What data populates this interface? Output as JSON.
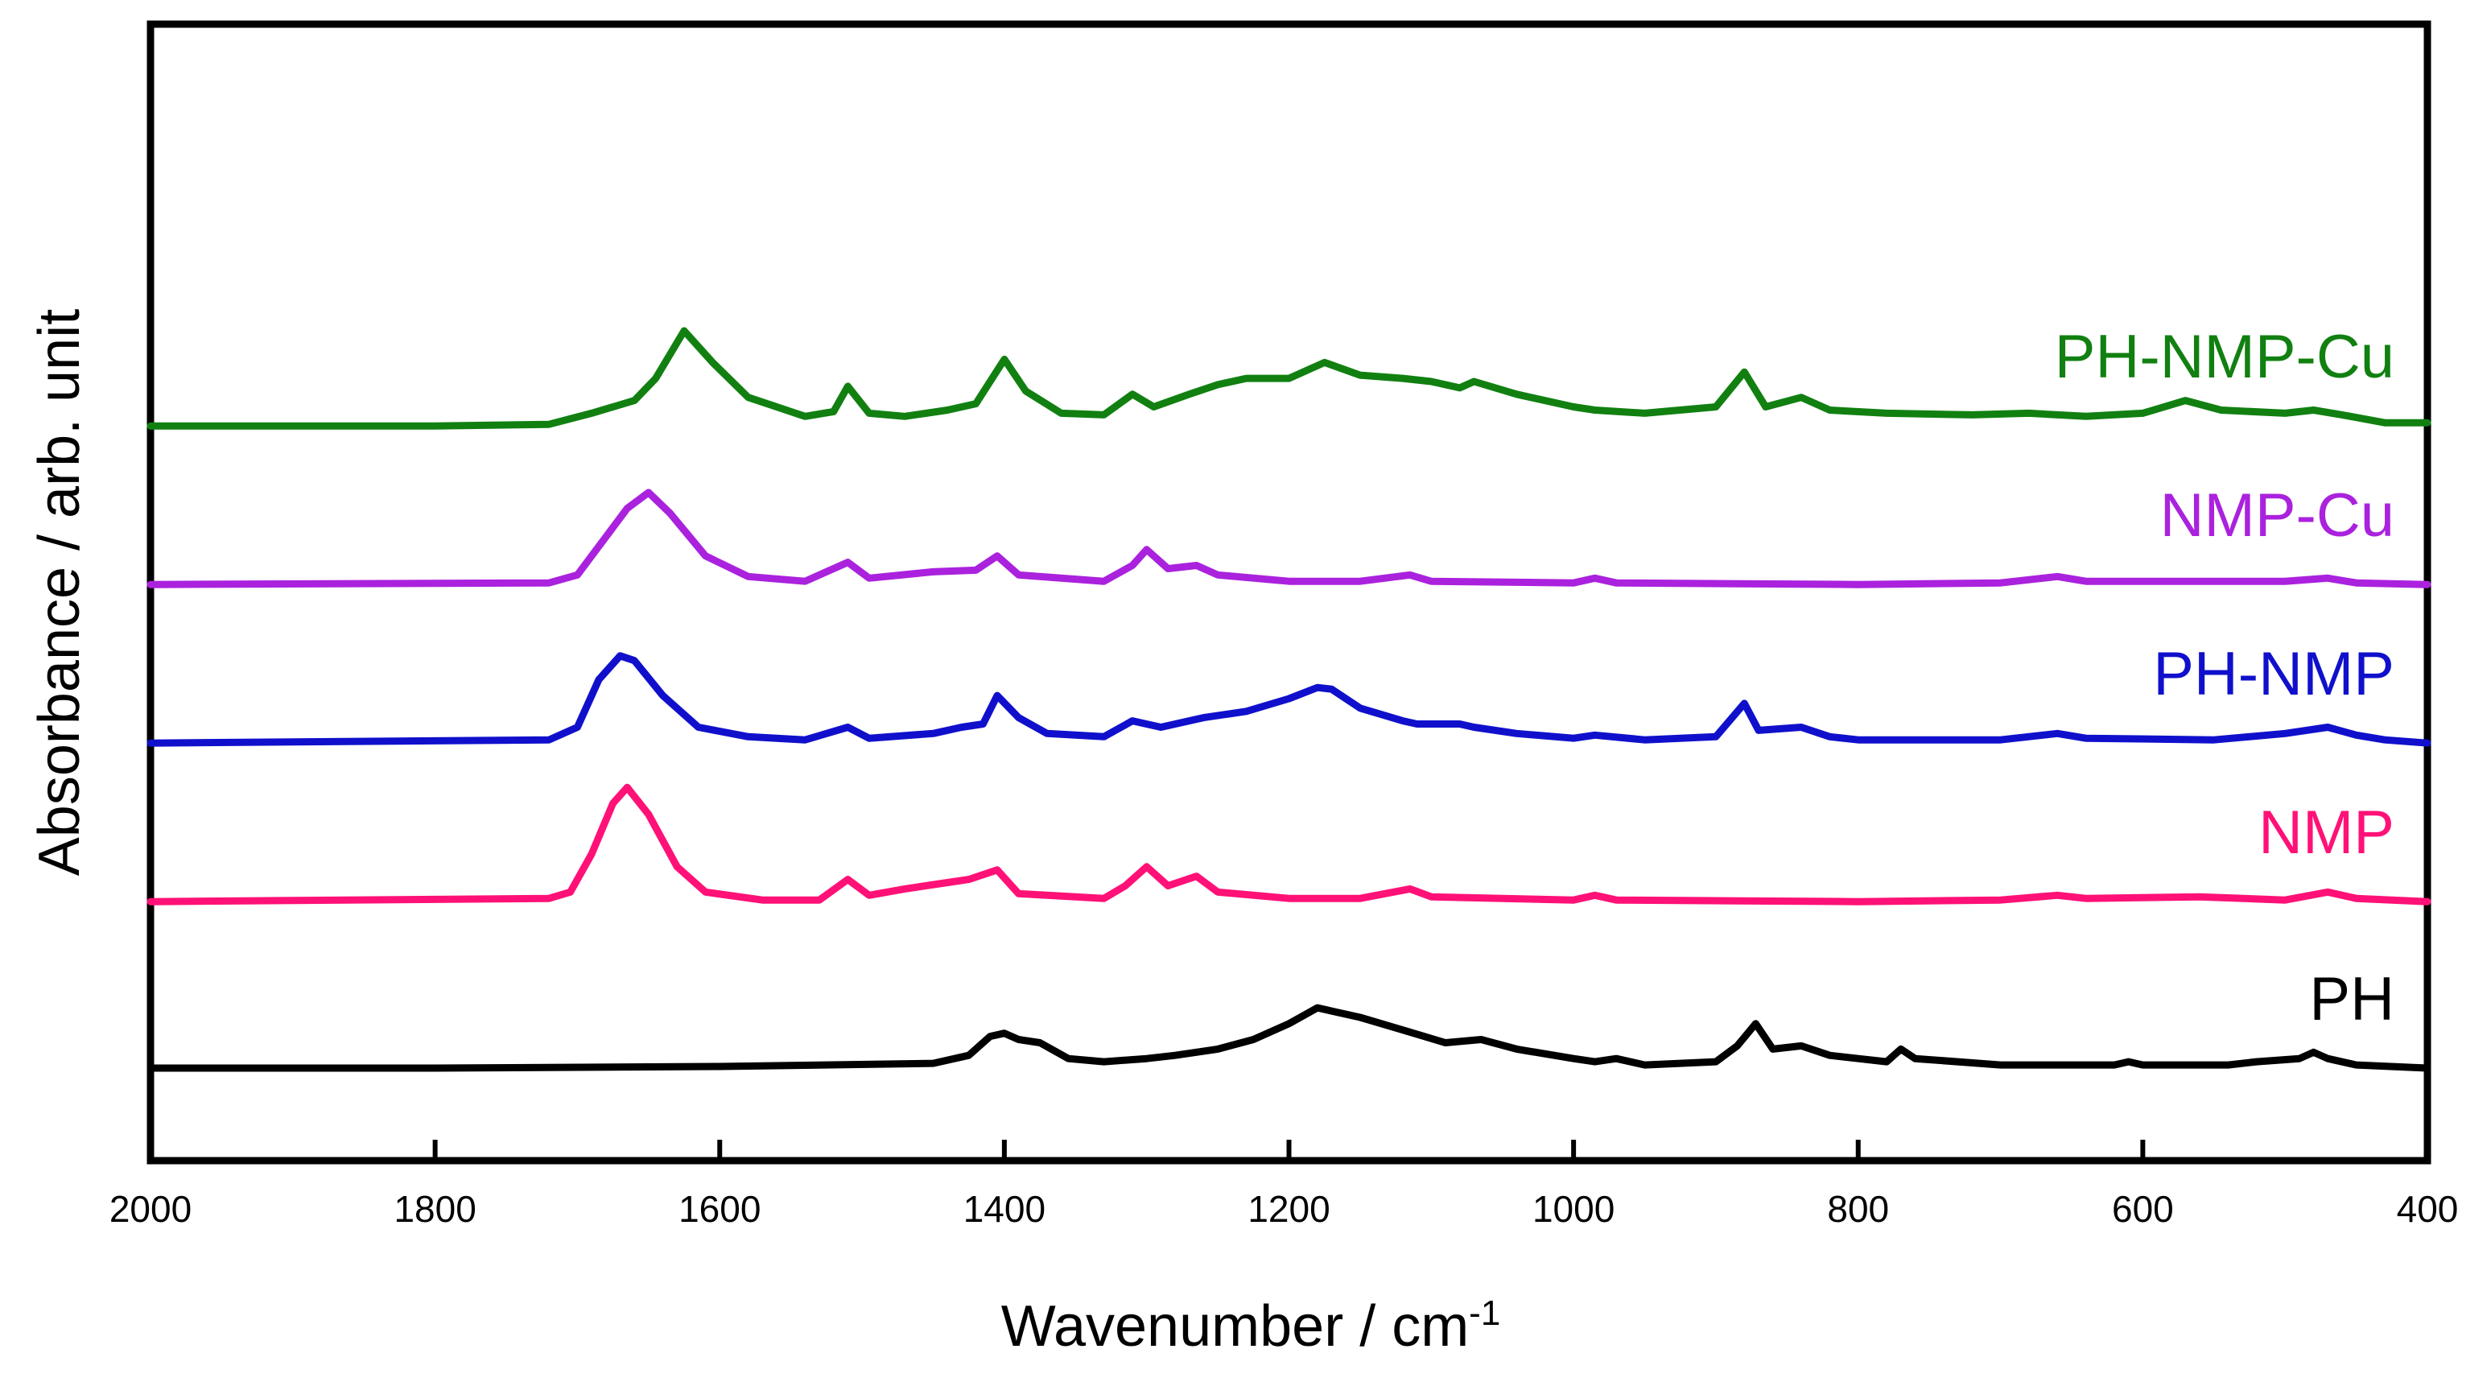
{
  "chart_data": {
    "type": "line",
    "title": "",
    "xlabel": "Wavenumber / cm",
    "xlabel_superscript": "-1",
    "ylabel": "Absorbance / arb. unit",
    "xlim": [
      2000,
      400
    ],
    "x_reversed": true,
    "xticks": [
      2000,
      1800,
      1600,
      1400,
      1200,
      1000,
      800,
      600,
      400
    ],
    "y_ticks_shown": false,
    "grid": false,
    "legend": "labels at right end of each trace",
    "series": [
      {
        "name": "PH-NMP-Cu",
        "color": "#118011",
        "offset": 4.05,
        "points": [
          [
            2000,
            0.0
          ],
          [
            1800,
            0.0
          ],
          [
            1720,
            0.01
          ],
          [
            1690,
            0.08
          ],
          [
            1660,
            0.16
          ],
          [
            1645,
            0.3
          ],
          [
            1625,
            0.6
          ],
          [
            1605,
            0.4
          ],
          [
            1580,
            0.18
          ],
          [
            1540,
            0.06
          ],
          [
            1520,
            0.09
          ],
          [
            1510,
            0.25
          ],
          [
            1495,
            0.08
          ],
          [
            1470,
            0.06
          ],
          [
            1440,
            0.1
          ],
          [
            1420,
            0.14
          ],
          [
            1400,
            0.42
          ],
          [
            1385,
            0.22
          ],
          [
            1360,
            0.08
          ],
          [
            1330,
            0.07
          ],
          [
            1310,
            0.2
          ],
          [
            1295,
            0.12
          ],
          [
            1270,
            0.2
          ],
          [
            1250,
            0.26
          ],
          [
            1230,
            0.3
          ],
          [
            1200,
            0.3
          ],
          [
            1175,
            0.4
          ],
          [
            1150,
            0.32
          ],
          [
            1120,
            0.3
          ],
          [
            1100,
            0.28
          ],
          [
            1080,
            0.24
          ],
          [
            1070,
            0.28
          ],
          [
            1040,
            0.2
          ],
          [
            1000,
            0.12
          ],
          [
            985,
            0.1
          ],
          [
            950,
            0.08
          ],
          [
            900,
            0.12
          ],
          [
            880,
            0.34
          ],
          [
            865,
            0.12
          ],
          [
            840,
            0.18
          ],
          [
            820,
            0.1
          ],
          [
            780,
            0.08
          ],
          [
            720,
            0.07
          ],
          [
            680,
            0.08
          ],
          [
            640,
            0.06
          ],
          [
            600,
            0.08
          ],
          [
            570,
            0.16
          ],
          [
            545,
            0.1
          ],
          [
            500,
            0.08
          ],
          [
            480,
            0.1
          ],
          [
            460,
            0.07
          ],
          [
            430,
            0.02
          ],
          [
            400,
            0.02
          ]
        ]
      },
      {
        "name": "NMP-Cu",
        "color": "#aa22dd",
        "offset": 3.05,
        "points": [
          [
            2000,
            0.0
          ],
          [
            1720,
            0.01
          ],
          [
            1700,
            0.06
          ],
          [
            1680,
            0.3
          ],
          [
            1665,
            0.48
          ],
          [
            1650,
            0.58
          ],
          [
            1635,
            0.45
          ],
          [
            1610,
            0.18
          ],
          [
            1580,
            0.05
          ],
          [
            1540,
            0.02
          ],
          [
            1510,
            0.14
          ],
          [
            1495,
            0.04
          ],
          [
            1450,
            0.08
          ],
          [
            1420,
            0.09
          ],
          [
            1405,
            0.18
          ],
          [
            1390,
            0.06
          ],
          [
            1330,
            0.02
          ],
          [
            1310,
            0.12
          ],
          [
            1300,
            0.22
          ],
          [
            1285,
            0.1
          ],
          [
            1265,
            0.12
          ],
          [
            1250,
            0.06
          ],
          [
            1200,
            0.02
          ],
          [
            1150,
            0.02
          ],
          [
            1115,
            0.06
          ],
          [
            1100,
            0.02
          ],
          [
            1000,
            0.01
          ],
          [
            985,
            0.04
          ],
          [
            970,
            0.01
          ],
          [
            800,
            0.0
          ],
          [
            700,
            0.01
          ],
          [
            660,
            0.05
          ],
          [
            640,
            0.02
          ],
          [
            500,
            0.02
          ],
          [
            470,
            0.04
          ],
          [
            450,
            0.01
          ],
          [
            400,
            0.0
          ]
        ]
      },
      {
        "name": "PH-NMP",
        "color": "#1010cc",
        "offset": 2.05,
        "points": [
          [
            2000,
            0.0
          ],
          [
            1720,
            0.02
          ],
          [
            1700,
            0.1
          ],
          [
            1685,
            0.4
          ],
          [
            1670,
            0.55
          ],
          [
            1660,
            0.52
          ],
          [
            1640,
            0.3
          ],
          [
            1615,
            0.1
          ],
          [
            1580,
            0.04
          ],
          [
            1540,
            0.02
          ],
          [
            1510,
            0.1
          ],
          [
            1495,
            0.03
          ],
          [
            1450,
            0.06
          ],
          [
            1430,
            0.1
          ],
          [
            1415,
            0.12
          ],
          [
            1405,
            0.3
          ],
          [
            1390,
            0.16
          ],
          [
            1370,
            0.06
          ],
          [
            1330,
            0.04
          ],
          [
            1310,
            0.14
          ],
          [
            1290,
            0.1
          ],
          [
            1260,
            0.16
          ],
          [
            1230,
            0.2
          ],
          [
            1200,
            0.28
          ],
          [
            1180,
            0.35
          ],
          [
            1170,
            0.34
          ],
          [
            1150,
            0.22
          ],
          [
            1120,
            0.14
          ],
          [
            1110,
            0.12
          ],
          [
            1080,
            0.12
          ],
          [
            1070,
            0.1
          ],
          [
            1040,
            0.06
          ],
          [
            1000,
            0.03
          ],
          [
            985,
            0.05
          ],
          [
            950,
            0.02
          ],
          [
            900,
            0.04
          ],
          [
            880,
            0.25
          ],
          [
            870,
            0.08
          ],
          [
            840,
            0.1
          ],
          [
            820,
            0.04
          ],
          [
            800,
            0.02
          ],
          [
            700,
            0.02
          ],
          [
            660,
            0.06
          ],
          [
            640,
            0.03
          ],
          [
            550,
            0.02
          ],
          [
            500,
            0.06
          ],
          [
            470,
            0.1
          ],
          [
            450,
            0.05
          ],
          [
            430,
            0.02
          ],
          [
            400,
            0.0
          ]
        ]
      },
      {
        "name": "NMP",
        "color": "#ff1177",
        "offset": 1.05,
        "points": [
          [
            2000,
            0.0
          ],
          [
            1720,
            0.02
          ],
          [
            1705,
            0.06
          ],
          [
            1690,
            0.3
          ],
          [
            1675,
            0.62
          ],
          [
            1665,
            0.72
          ],
          [
            1650,
            0.55
          ],
          [
            1630,
            0.22
          ],
          [
            1610,
            0.06
          ],
          [
            1570,
            0.01
          ],
          [
            1530,
            0.01
          ],
          [
            1510,
            0.14
          ],
          [
            1495,
            0.04
          ],
          [
            1470,
            0.08
          ],
          [
            1440,
            0.12
          ],
          [
            1425,
            0.14
          ],
          [
            1405,
            0.2
          ],
          [
            1390,
            0.05
          ],
          [
            1330,
            0.02
          ],
          [
            1315,
            0.1
          ],
          [
            1300,
            0.22
          ],
          [
            1285,
            0.1
          ],
          [
            1265,
            0.16
          ],
          [
            1250,
            0.06
          ],
          [
            1200,
            0.02
          ],
          [
            1150,
            0.02
          ],
          [
            1115,
            0.08
          ],
          [
            1100,
            0.03
          ],
          [
            1000,
            0.01
          ],
          [
            985,
            0.04
          ],
          [
            970,
            0.01
          ],
          [
            800,
            0.0
          ],
          [
            700,
            0.01
          ],
          [
            660,
            0.04
          ],
          [
            640,
            0.02
          ],
          [
            560,
            0.03
          ],
          [
            500,
            0.01
          ],
          [
            470,
            0.06
          ],
          [
            450,
            0.02
          ],
          [
            400,
            0.0
          ]
        ]
      },
      {
        "name": "PH",
        "color": "#000000",
        "offset": 0.0,
        "points": [
          [
            2000,
            0.0
          ],
          [
            1800,
            0.0
          ],
          [
            1600,
            0.01
          ],
          [
            1450,
            0.03
          ],
          [
            1425,
            0.08
          ],
          [
            1410,
            0.2
          ],
          [
            1400,
            0.22
          ],
          [
            1390,
            0.18
          ],
          [
            1375,
            0.16
          ],
          [
            1355,
            0.06
          ],
          [
            1330,
            0.04
          ],
          [
            1300,
            0.06
          ],
          [
            1280,
            0.08
          ],
          [
            1250,
            0.12
          ],
          [
            1225,
            0.18
          ],
          [
            1200,
            0.28
          ],
          [
            1180,
            0.38
          ],
          [
            1170,
            0.36
          ],
          [
            1150,
            0.32
          ],
          [
            1120,
            0.24
          ],
          [
            1090,
            0.16
          ],
          [
            1065,
            0.18
          ],
          [
            1040,
            0.12
          ],
          [
            1000,
            0.06
          ],
          [
            985,
            0.04
          ],
          [
            970,
            0.06
          ],
          [
            950,
            0.02
          ],
          [
            900,
            0.04
          ],
          [
            885,
            0.14
          ],
          [
            872,
            0.28
          ],
          [
            860,
            0.12
          ],
          [
            840,
            0.14
          ],
          [
            820,
            0.08
          ],
          [
            800,
            0.06
          ],
          [
            780,
            0.04
          ],
          [
            770,
            0.12
          ],
          [
            760,
            0.06
          ],
          [
            700,
            0.02
          ],
          [
            620,
            0.02
          ],
          [
            610,
            0.04
          ],
          [
            600,
            0.02
          ],
          [
            540,
            0.02
          ],
          [
            520,
            0.04
          ],
          [
            490,
            0.06
          ],
          [
            480,
            0.1
          ],
          [
            470,
            0.06
          ],
          [
            450,
            0.02
          ],
          [
            400,
            0.0
          ]
        ]
      }
    ]
  }
}
